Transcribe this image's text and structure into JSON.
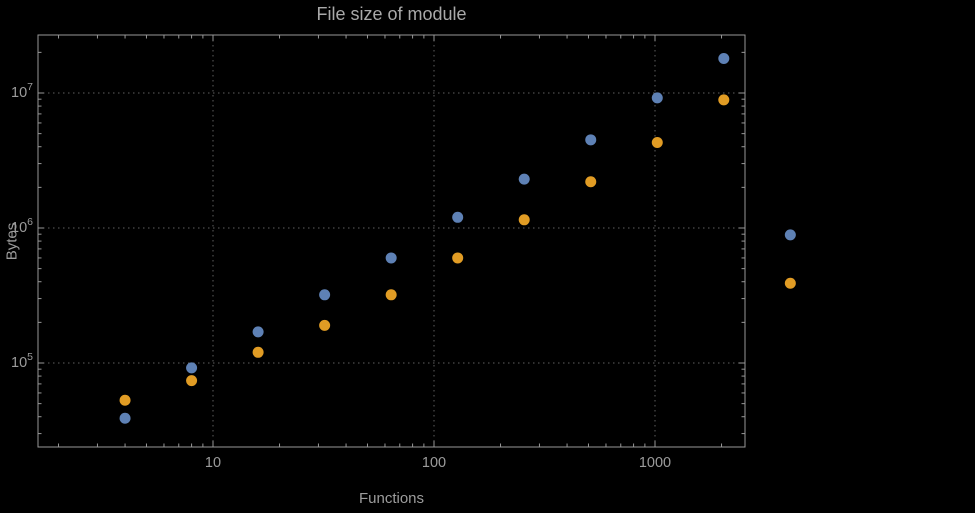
{
  "chart_data": {
    "type": "scatter",
    "title": "File size of module",
    "xlabel": "Functions",
    "ylabel": "Bytes",
    "x_scale": "log",
    "y_scale": "log",
    "xlim": [
      1.7,
      2550
    ],
    "ylim": [
      25000,
      26000000
    ],
    "x_gridlines": [
      10,
      100,
      1000
    ],
    "y_gridlines": [
      100000,
      1000000,
      10000000
    ],
    "x_tick_labels": [
      "10",
      "100",
      "1000"
    ],
    "y_tick_base": "10",
    "y_tick_exponents": [
      "5",
      "6",
      "7"
    ],
    "grid_color": "#5f5f5f",
    "frame_color": "#989898",
    "series": [
      {
        "name": "series-blue",
        "color": "#5e81b5",
        "points": [
          [
            4,
            39000
          ],
          [
            8,
            92000
          ],
          [
            16,
            170000
          ],
          [
            32,
            320000
          ],
          [
            64,
            600000
          ],
          [
            128,
            1200000
          ],
          [
            256,
            2300000
          ],
          [
            512,
            4500000
          ],
          [
            1024,
            9200000
          ],
          [
            2048,
            18000000
          ],
          [
            4096,
            890000
          ]
        ]
      },
      {
        "name": "series-orange",
        "color": "#e19c24",
        "points": [
          [
            4,
            53000
          ],
          [
            8,
            74000
          ],
          [
            16,
            120000
          ],
          [
            32,
            190000
          ],
          [
            64,
            320000
          ],
          [
            128,
            600000
          ],
          [
            256,
            1150000
          ],
          [
            512,
            2200000
          ],
          [
            1024,
            4300000
          ],
          [
            2048,
            8900000
          ],
          [
            4096,
            390000
          ]
        ]
      }
    ]
  }
}
